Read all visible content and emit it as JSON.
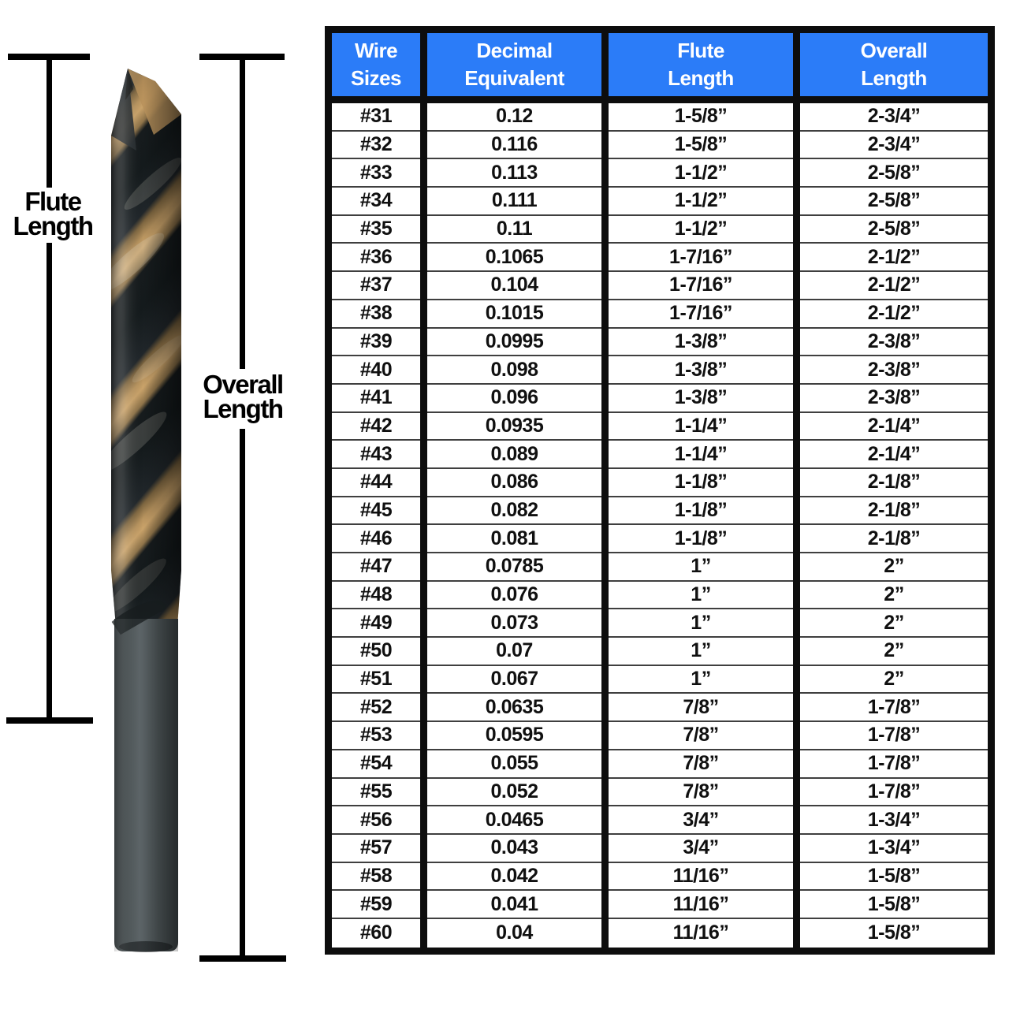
{
  "page": {
    "background": "#ffffff"
  },
  "annotations": {
    "flute_length": {
      "line1": "Flute",
      "line2": "Length"
    },
    "overall_length": {
      "line1": "Overall",
      "line2": "Length"
    }
  },
  "drill_bit": {
    "description": "black and gold twist drill bit, fluted spiral top, smooth dark shank below",
    "colors": {
      "gold": "#b8945f",
      "flute_black": "#171c1e",
      "shank_gray": "#454c4e"
    }
  },
  "table": {
    "header_bg": "#2b7cf8",
    "header_text_color": "#ffffff",
    "border_color": "#0d0d0d",
    "row_line_color": "#3f3f3f",
    "headers": [
      {
        "line1": "Wire",
        "line2": "Sizes"
      },
      {
        "line1": "Decimal",
        "line2": "Equivalent"
      },
      {
        "line1": "Flute",
        "line2": "Length"
      },
      {
        "line1": "Overall",
        "line2": "Length"
      }
    ]
  },
  "chart_data": {
    "type": "table",
    "columns": [
      "Wire Sizes",
      "Decimal Equivalent",
      "Flute Length",
      "Overall Length"
    ],
    "rows": [
      [
        "#31",
        "0.12",
        "1-5/8”",
        "2-3/4”"
      ],
      [
        "#32",
        "0.116",
        "1-5/8”",
        "2-3/4”"
      ],
      [
        "#33",
        "0.113",
        "1-1/2”",
        "2-5/8”"
      ],
      [
        "#34",
        "0.111",
        "1-1/2”",
        "2-5/8”"
      ],
      [
        "#35",
        "0.11",
        "1-1/2”",
        "2-5/8”"
      ],
      [
        "#36",
        "0.1065",
        "1-7/16”",
        "2-1/2”"
      ],
      [
        "#37",
        "0.104",
        "1-7/16”",
        "2-1/2”"
      ],
      [
        "#38",
        "0.1015",
        "1-7/16”",
        "2-1/2”"
      ],
      [
        "#39",
        "0.0995",
        "1-3/8”",
        "2-3/8”"
      ],
      [
        "#40",
        "0.098",
        "1-3/8”",
        "2-3/8”"
      ],
      [
        "#41",
        "0.096",
        "1-3/8”",
        "2-3/8”"
      ],
      [
        "#42",
        "0.0935",
        "1-1/4”",
        "2-1/4”"
      ],
      [
        "#43",
        "0.089",
        "1-1/4”",
        "2-1/4”"
      ],
      [
        "#44",
        "0.086",
        "1-1/8”",
        "2-1/8”"
      ],
      [
        "#45",
        "0.082",
        "1-1/8”",
        "2-1/8”"
      ],
      [
        "#46",
        "0.081",
        "1-1/8”",
        "2-1/8”"
      ],
      [
        "#47",
        "0.0785",
        "1”",
        "2”"
      ],
      [
        "#48",
        "0.076",
        "1”",
        "2”"
      ],
      [
        "#49",
        "0.073",
        "1”",
        "2”"
      ],
      [
        "#50",
        "0.07",
        "1”",
        "2”"
      ],
      [
        "#51",
        "0.067",
        "1”",
        "2”"
      ],
      [
        "#52",
        "0.0635",
        "7/8”",
        "1-7/8”"
      ],
      [
        "#53",
        "0.0595",
        "7/8”",
        "1-7/8”"
      ],
      [
        "#54",
        "0.055",
        "7/8”",
        "1-7/8”"
      ],
      [
        "#55",
        "0.052",
        "7/8”",
        "1-7/8”"
      ],
      [
        "#56",
        "0.0465",
        "3/4”",
        "1-3/4”"
      ],
      [
        "#57",
        "0.043",
        "3/4”",
        "1-3/4”"
      ],
      [
        "#58",
        "0.042",
        "11/16”",
        "1-5/8”"
      ],
      [
        "#59",
        "0.041",
        "11/16”",
        "1-5/8”"
      ],
      [
        "#60",
        "0.04",
        "11/16”",
        "1-5/8”"
      ]
    ]
  }
}
